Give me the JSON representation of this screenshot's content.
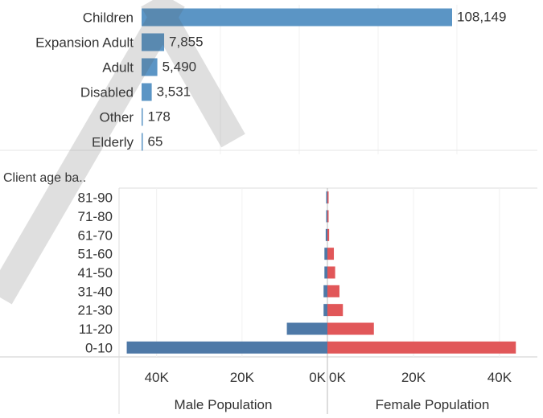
{
  "chart_data": [
    {
      "type": "bar",
      "orientation": "horizontal",
      "categories": [
        "Children",
        "Expansion Adult",
        "Adult",
        "Disabled",
        "Other",
        "Elderly"
      ],
      "values": [
        108149,
        7855,
        5490,
        3531,
        178,
        65
      ],
      "data_labels": [
        "108,149",
        "7,855",
        "5,490",
        "3,531",
        "178",
        "65"
      ],
      "xlim": [
        0,
        120000
      ],
      "color": "#5b95c5"
    },
    {
      "type": "bar",
      "subtype": "population-pyramid",
      "orientation": "horizontal",
      "row_header": "Client age ba..",
      "categories": [
        "81-90",
        "71-80",
        "61-70",
        "51-60",
        "41-50",
        "31-40",
        "21-30",
        "11-20",
        "0-10"
      ],
      "series": [
        {
          "values": [
            150,
            150,
            400,
            700,
            700,
            900,
            900,
            9500,
            47000
          ],
          "color": "#4e79a7"
        },
        {
          "values": [
            250,
            250,
            400,
            1500,
            1800,
            2800,
            3600,
            10800,
            43800
          ],
          "color": "#e15759"
        }
      ],
      "panels": [
        {
          "title": "Male Population",
          "xlim": [
            0,
            48800
          ],
          "direction": "reversed",
          "ticks": [
            {
              "value": 40000,
              "label": "40K"
            },
            {
              "value": 20000,
              "label": "20K"
            },
            {
              "value": 0,
              "label": "0K"
            }
          ]
        },
        {
          "title": "Female Population",
          "xlim": [
            0,
            48800
          ],
          "direction": "normal",
          "ticks": [
            {
              "value": 0,
              "label": "0K"
            },
            {
              "value": 20000,
              "label": "20K"
            },
            {
              "value": 40000,
              "label": "40K"
            }
          ]
        }
      ],
      "grid": true
    }
  ]
}
